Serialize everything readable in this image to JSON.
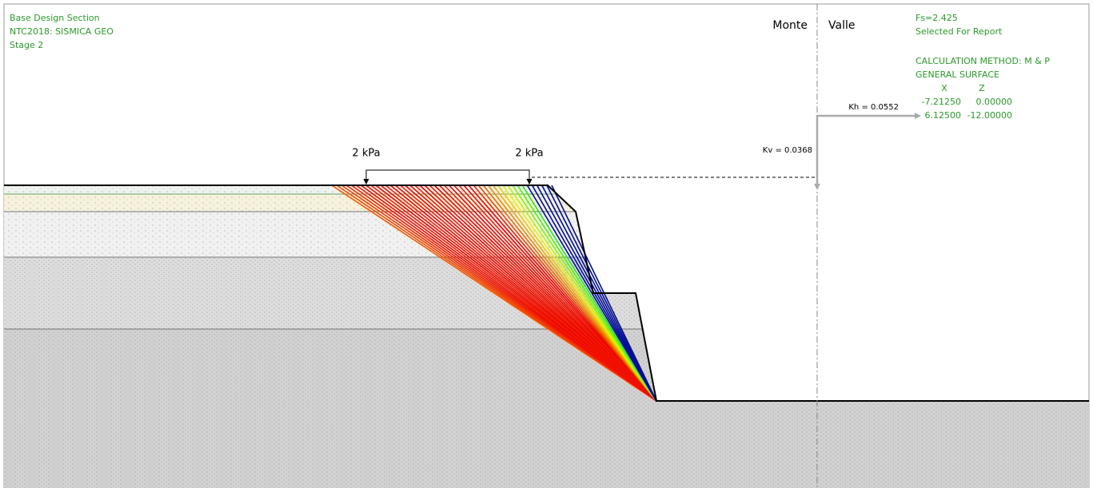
{
  "header": {
    "lines": [
      "Base Design Section",
      "NTC2018: SISMICA GEO",
      "Stage 2"
    ]
  },
  "labels": {
    "monte": "Monte",
    "valle": "Valle",
    "load_left": "2 kPa",
    "load_right": "2 kPa",
    "kv": "Kv = 0.0368",
    "kh": "Kh = 0.0552"
  },
  "results": {
    "fs": "Fs=2.425",
    "status": "Selected For Report",
    "method": "CALCULATION METHOD: M & P",
    "surface": "GENERAL SURFACE",
    "columns": [
      "X",
      "Z"
    ],
    "rows": [
      [
        "-7.21250",
        "0.00000"
      ],
      [
        "6.12500",
        "-12.00000"
      ]
    ]
  }
}
